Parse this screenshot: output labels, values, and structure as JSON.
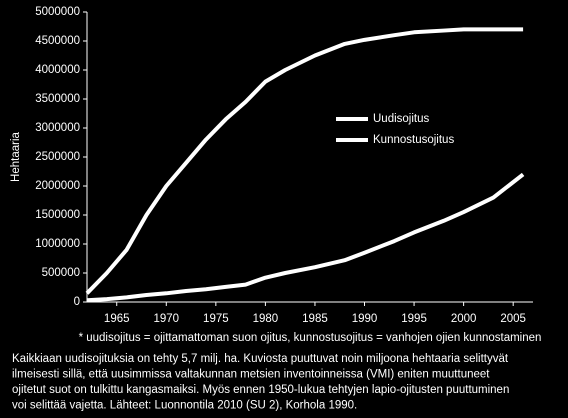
{
  "chart_data": {
    "type": "line",
    "y_label": "Hehtaaria",
    "x": [
      1962,
      1964,
      1966,
      1968,
      1970,
      1972,
      1974,
      1976,
      1978,
      1980,
      1982,
      1985,
      1988,
      1990,
      1993,
      1995,
      1998,
      2000,
      2003,
      2006
    ],
    "series": [
      {
        "name": "Uudisojitus",
        "color": "#ffffff",
        "values": [
          150000,
          500000,
          900000,
          1500000,
          2000000,
          2400000,
          2800000,
          3150000,
          3450000,
          3800000,
          4000000,
          4250000,
          4450000,
          4520000,
          4600000,
          4650000,
          4680000,
          4700000,
          4700000,
          4700000
        ]
      },
      {
        "name": "Kunnostusojitus",
        "color": "#ffffff",
        "values": [
          30000,
          50000,
          80000,
          120000,
          150000,
          190000,
          220000,
          260000,
          300000,
          420000,
          500000,
          600000,
          720000,
          850000,
          1050000,
          1200000,
          1400000,
          1550000,
          1800000,
          2200000
        ]
      }
    ],
    "xlim": [
      1962,
      2007
    ],
    "xticks": [
      1965,
      1970,
      1975,
      1980,
      1985,
      1990,
      1995,
      2000,
      2005
    ],
    "ylim": [
      0,
      5000000
    ],
    "yticks": [
      0,
      500000,
      1000000,
      1500000,
      2000000,
      2500000,
      3000000,
      3500000,
      4000000,
      4500000,
      5000000
    ],
    "legend": "upper-center",
    "footnote": "* uudisojitus = ojittamattoman suon ojitus, kunnostusojitus = vanhojen ojien kunnostaminen",
    "note_lines": [
      "Kaikkiaan uudisojituksia on tehty 5,7 milj. ha. Kuviosta puuttuvat noin miljoona hehtaaria selittyvät",
      "ilmeisesti sillä, että uusimmissa valtakunnan metsien inventoinneissa (VMI) eniten muuttuneet",
      "ojitetut suot on tulkittu kangasmaiksi. Myös ennen 1950-lukua tehtyjen lapio-ojitusten puuttuminen",
      "voi selittää vajetta. Lähteet: Luonnontila 2010 (SU 2), Korhola 1990."
    ]
  }
}
